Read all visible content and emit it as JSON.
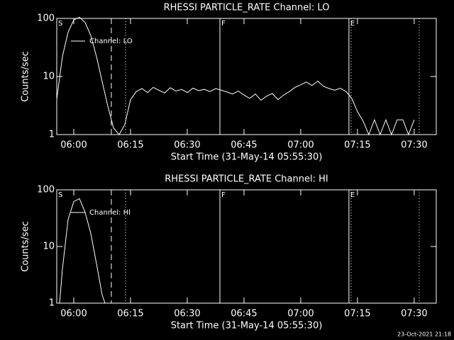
{
  "chart_data": [
    {
      "type": "line",
      "title": "RHESSI PARTICLE_RATE Channel: LO",
      "xlabel": "Start Time (31-May-14 05:55:30)",
      "ylabel": "Counts/sec",
      "log_y": true,
      "legend_loc": "upper left",
      "xlim": [
        0,
        6020
      ],
      "ylim": [
        1,
        100
      ],
      "xticks": [
        {
          "value": 270,
          "label": "06:00"
        },
        {
          "value": 1170,
          "label": "06:15"
        },
        {
          "value": 2070,
          "label": "06:30"
        },
        {
          "value": 2970,
          "label": "06:45"
        },
        {
          "value": 3870,
          "label": "07:00"
        },
        {
          "value": 4770,
          "label": "07:15"
        },
        {
          "value": 5670,
          "label": "07:30"
        }
      ],
      "yticks": [
        1,
        10,
        100
      ],
      "flags": [
        {
          "value": 0,
          "label": "S"
        },
        {
          "value": 2588,
          "label": "F"
        },
        {
          "value": 4635,
          "label": "E"
        }
      ],
      "vlines": [
        {
          "value": 866,
          "style": "dashed"
        },
        {
          "value": 1091,
          "style": "dotted"
        },
        {
          "value": 2588,
          "style": "solid"
        },
        {
          "value": 4635,
          "style": "solid"
        },
        {
          "value": 4669,
          "style": "dotted"
        },
        {
          "value": 5749,
          "style": "dotted"
        }
      ],
      "series": [
        {
          "name": "Channel: LO",
          "color": "#ffffff",
          "x": [
            0,
            90,
            180,
            270,
            360,
            450,
            540,
            630,
            720,
            810,
            900,
            990,
            1080,
            1170,
            1260,
            1350,
            1440,
            1530,
            1620,
            1710,
            1800,
            1890,
            1980,
            2070,
            2160,
            2250,
            2340,
            2430,
            2520,
            2610,
            2700,
            2790,
            2880,
            2970,
            3060,
            3150,
            3240,
            3330,
            3420,
            3510,
            3600,
            3690,
            3780,
            3870,
            3960,
            4050,
            4140,
            4230,
            4320,
            4410,
            4500,
            4590,
            4680,
            4770,
            4860,
            4950,
            5040,
            5130,
            5220,
            5310,
            5400,
            5490,
            5580,
            5670
          ],
          "values": [
            4.1,
            22,
            58,
            94,
            105,
            85,
            51,
            22,
            8.2,
            3.1,
            1.3,
            1,
            1.5,
            4,
            5.5,
            6.2,
            5.3,
            6.5,
            5.8,
            5.2,
            6.4,
            5.6,
            6.0,
            5.3,
            6.3,
            5.7,
            6.0,
            5.5,
            6.2,
            5.8,
            5.4,
            5.0,
            5.6,
            4.8,
            4.2,
            5.0,
            3.9,
            4.6,
            5.1,
            4.0,
            4.8,
            5.5,
            6.5,
            7.2,
            8.0,
            7.0,
            8.3,
            6.8,
            6.2,
            5.8,
            6.3,
            5.5,
            4.2,
            2.5,
            1.7,
            1,
            1.8,
            1,
            1.8,
            1,
            1.8,
            1.8,
            1,
            1.8
          ]
        }
      ]
    },
    {
      "type": "line",
      "title": "RHESSI PARTICLE_RATE Channel: HI",
      "xlabel": "Start Time (31-May-14 05:55:30)",
      "ylabel": "Counts/sec",
      "log_y": true,
      "legend_loc": "upper left",
      "xlim": [
        0,
        6020
      ],
      "ylim": [
        1,
        100
      ],
      "xticks": [
        {
          "value": 270,
          "label": "06:00"
        },
        {
          "value": 1170,
          "label": "06:15"
        },
        {
          "value": 2070,
          "label": "06:30"
        },
        {
          "value": 2970,
          "label": "06:45"
        },
        {
          "value": 3870,
          "label": "07:00"
        },
        {
          "value": 4770,
          "label": "07:15"
        },
        {
          "value": 5670,
          "label": "07:30"
        }
      ],
      "yticks": [
        1,
        10,
        100
      ],
      "flags": [
        {
          "value": 0,
          "label": "S"
        },
        {
          "value": 2588,
          "label": "F"
        },
        {
          "value": 4635,
          "label": "E"
        }
      ],
      "vlines": [
        {
          "value": 866,
          "style": "dashed"
        },
        {
          "value": 1091,
          "style": "dotted"
        },
        {
          "value": 2588,
          "style": "solid"
        },
        {
          "value": 4635,
          "style": "solid"
        },
        {
          "value": 4669,
          "style": "dotted"
        },
        {
          "value": 5749,
          "style": "dotted"
        }
      ],
      "series": [
        {
          "name": "Channel: HI",
          "color": "#ffffff",
          "x": [
            45,
            90,
            180,
            270,
            360,
            450,
            540,
            630,
            720,
            765
          ],
          "values": [
            1,
            4,
            30,
            62,
            70,
            40,
            17,
            5,
            1.4,
            1
          ]
        }
      ]
    }
  ],
  "footer": "23-Oct-2021 21:18"
}
